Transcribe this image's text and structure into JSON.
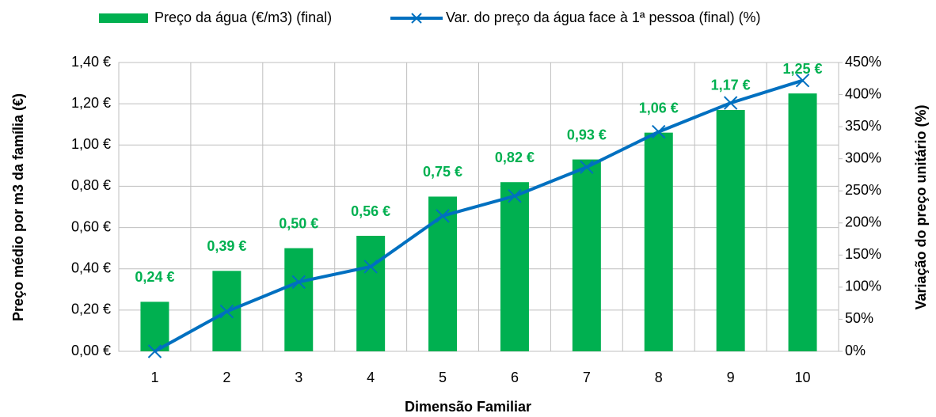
{
  "chart_data": {
    "type": "bar",
    "xlabel": "Dimensão Familiar",
    "ylabel": "Preço médio por m3 da família (€)",
    "y2label": "Variação do preço unitário (%)",
    "categories": [
      1,
      2,
      3,
      4,
      5,
      6,
      7,
      8,
      9,
      10
    ],
    "series": [
      {
        "name": "Preço da água (€/m3) (final)",
        "type": "bar",
        "color": "#00b050",
        "values": [
          0.24,
          0.39,
          0.5,
          0.56,
          0.75,
          0.82,
          0.93,
          1.06,
          1.17,
          1.25
        ],
        "value_labels": [
          "0,24 €",
          "0,39 €",
          "0,50 €",
          "0,56 €",
          "0,75 €",
          "0,82 €",
          "0,93 €",
          "1,06 €",
          "1,17 €",
          "1,25 €"
        ]
      },
      {
        "name": "Var. do preço da água face à 1ª pessoa (final) (%)",
        "type": "line",
        "axis": "y2",
        "color": "#0070c0",
        "marker": "x",
        "values": [
          0,
          62,
          108,
          132,
          211,
          242,
          287,
          342,
          387,
          422
        ]
      }
    ],
    "ylim": [
      0,
      1.4
    ],
    "yticks": [
      {
        "value": 0,
        "label": "0,00 €"
      },
      {
        "value": 0.2,
        "label": "0,20 €"
      },
      {
        "value": 0.4,
        "label": "0,40 €"
      },
      {
        "value": 0.6,
        "label": "0,60 €"
      },
      {
        "value": 0.8,
        "label": "0,80 €"
      },
      {
        "value": 1.0,
        "label": "1,00 €"
      },
      {
        "value": 1.2,
        "label": "1,20 €"
      },
      {
        "value": 1.4,
        "label": "1,40 €"
      }
    ],
    "y2lim": [
      0,
      450
    ],
    "y2ticks": [
      {
        "value": 0,
        "label": "0%"
      },
      {
        "value": 50,
        "label": "50%"
      },
      {
        "value": 100,
        "label": "100%"
      },
      {
        "value": 150,
        "label": "150%"
      },
      {
        "value": 200,
        "label": "200%"
      },
      {
        "value": 250,
        "label": "250%"
      },
      {
        "value": 300,
        "label": "300%"
      },
      {
        "value": 350,
        "label": "350%"
      },
      {
        "value": 400,
        "label": "400%"
      },
      {
        "value": 450,
        "label": "450%"
      }
    ],
    "grid": true,
    "legend": "top"
  }
}
